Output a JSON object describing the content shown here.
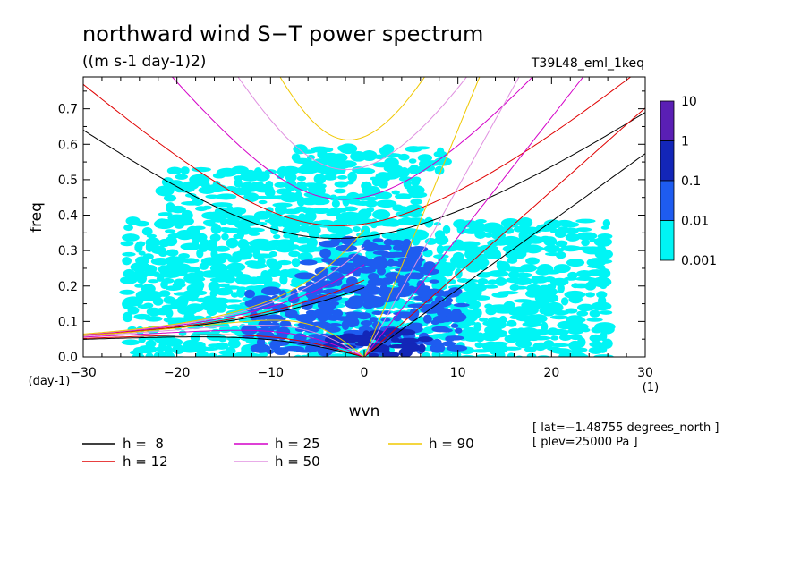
{
  "chart_data": {
    "type": "heatmap",
    "title": "northward wind S−T power spectrum",
    "subtitle": "((m s-1 day-1)2)",
    "run_label": "T39L48_eml_1keq",
    "xlabel": "wvn",
    "ylabel": "freq",
    "x_unit_label": "(1)",
    "y_unit_label": "(day-1)",
    "xlim": [
      -30,
      30
    ],
    "ylim": [
      0,
      0.79
    ],
    "x_ticks": [
      -30,
      -20,
      -10,
      0,
      10,
      20,
      30
    ],
    "x_tick_labels": [
      "−30",
      "−20",
      "−10",
      "0",
      "10",
      "20",
      "30"
    ],
    "y_ticks": [
      0,
      0.1,
      0.2,
      0.3,
      0.4,
      0.5,
      0.6,
      0.7
    ],
    "y_tick_labels": [
      "0.0",
      "0.1",
      "0.2",
      "0.3",
      "0.4",
      "0.5",
      "0.6",
      "0.7"
    ],
    "grid": false,
    "contour_levels": [
      0.001,
      0.01,
      0.1,
      1,
      10
    ],
    "colorbar": {
      "labels": [
        "10",
        "1",
        "0.1",
        "0.01",
        "0.001"
      ],
      "colors": [
        "#5a1fb4",
        "#1326b8",
        "#1e5cf0",
        "#00f5f5"
      ]
    },
    "dispersion_curves": [
      {
        "label": "h =  8",
        "h": 8,
        "color": "#000000"
      },
      {
        "label": "h = 12",
        "h": 12,
        "color": "#e00000"
      },
      {
        "label": "h = 25",
        "h": 25,
        "color": "#d400c8"
      },
      {
        "label": "h = 50",
        "h": 50,
        "color": "#e090e0"
      },
      {
        "label": "h = 90",
        "h": 90,
        "color": "#f0c800"
      }
    ],
    "annotations": [
      "[ lat=−1.48755 degrees_north ]",
      "[ plev=25000 Pa ]"
    ],
    "power_regions": [
      {
        "level": 0.001,
        "x0": -25,
        "x1": 26,
        "y0": 0,
        "y1": 0.38
      },
      {
        "level": 0.001,
        "x0": -21,
        "x1": 6,
        "y0": 0.38,
        "y1": 0.53
      },
      {
        "level": 0.001,
        "x0": -7,
        "x1": 9,
        "y0": 0.53,
        "y1": 0.6
      },
      {
        "level": 0.01,
        "x0": -12,
        "x1": 10,
        "y0": 0.02,
        "y1": 0.19
      },
      {
        "level": 0.01,
        "x0": -6,
        "x1": 8,
        "y0": 0.19,
        "y1": 0.27
      },
      {
        "level": 0.01,
        "x0": -4,
        "x1": 6,
        "y0": 0.27,
        "y1": 0.33
      },
      {
        "level": 0.1,
        "x0": 0,
        "x1": 5,
        "y0": 0.01,
        "y1": 0.08
      },
      {
        "level": 0.1,
        "x0": -3,
        "x1": 7,
        "y0": 0.03,
        "y1": 0.06
      }
    ]
  }
}
